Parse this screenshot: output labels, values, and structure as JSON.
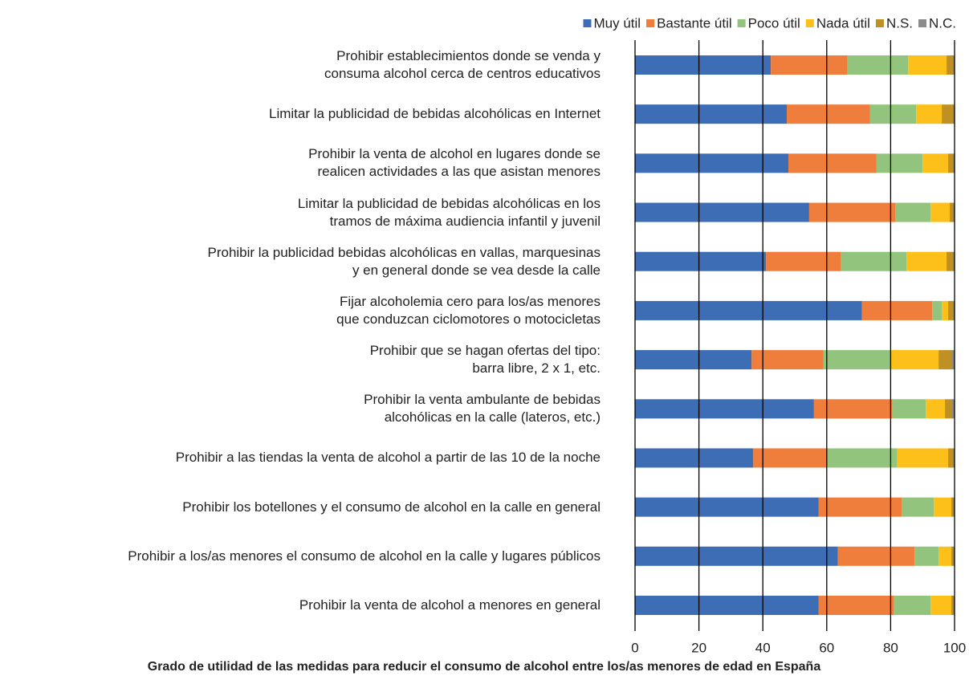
{
  "chart_data": {
    "type": "stacked-barh",
    "title": "Grado de utilidad de las medidas para reducir el consumo de alcohol entre los/as menores de edad en España",
    "categories": [
      "Prohibir establecimientos donde se venda y\nconsuma alcohol cerca de centros educativos",
      "Limitar la publicidad de bebidas alcohólicas en Internet",
      "Prohibir la venta de alcohol en lugares donde se\nrealicen actividades a las que asistan menores",
      "Limitar la publicidad de bebidas alcohólicas en los\ntramos de máxima audiencia infantil y juvenil",
      "Prohibir la publicidad bebidas alcohólicas en vallas, marquesinas\ny en general donde se vea desde la calle",
      "Fijar alcoholemia cero para los/as menores\nque conduzcan ciclomotores o motocicletas",
      "Prohibir que se hagan ofertas del tipo:\nbarra libre, 2 x 1, etc.",
      "Prohibir la venta ambulante de bebidas\nalcohólicas en la calle (lateros, etc.)",
      "Prohibir a las tiendas la venta de alcohol a partir de las 10 de la noche",
      "Prohibir los botellones y el consumo de alcohol en la calle en general",
      "Prohibir a los/as menores el consumo de alcohol en la calle y lugares públicos",
      "Prohibir la venta de alcohol a menores en general"
    ],
    "series": [
      {
        "name": "Muy útil",
        "color": "#3d6db5",
        "values": [
          42.5,
          47.5,
          48,
          54.5,
          41,
          71,
          36.5,
          56,
          37,
          57.5,
          63.5,
          57.5
        ]
      },
      {
        "name": "Bastante útil",
        "color": "#ef7d3b",
        "values": [
          24,
          26,
          27.5,
          27,
          23.5,
          22,
          22.5,
          24.5,
          23,
          26,
          24,
          23.5
        ]
      },
      {
        "name": "Poco útil",
        "color": "#93c47d",
        "values": [
          19,
          14.5,
          14.5,
          11,
          20.5,
          3,
          21,
          10.5,
          22,
          10,
          7.5,
          11.5
        ]
      },
      {
        "name": "Nada útil",
        "color": "#fdbf1a",
        "values": [
          12,
          8,
          8,
          6,
          12.5,
          2,
          15,
          6,
          16,
          5.5,
          4,
          6.5
        ]
      },
      {
        "name": "N.S.",
        "color": "#bf9023",
        "values": [
          2,
          3.5,
          1.5,
          1,
          2,
          1.5,
          4,
          2,
          1.5,
          0.5,
          0.5,
          0.5
        ]
      },
      {
        "name": "N.C.",
        "color": "#8c8c8c",
        "values": [
          0.5,
          0.5,
          0.5,
          0.5,
          0.5,
          0.5,
          1,
          1,
          0.5,
          0.5,
          0.5,
          0.5
        ]
      }
    ],
    "xlim": [
      0,
      100
    ],
    "xticks": [
      0,
      20,
      40,
      60,
      80,
      100
    ],
    "grid": true,
    "legend": "top-right"
  }
}
